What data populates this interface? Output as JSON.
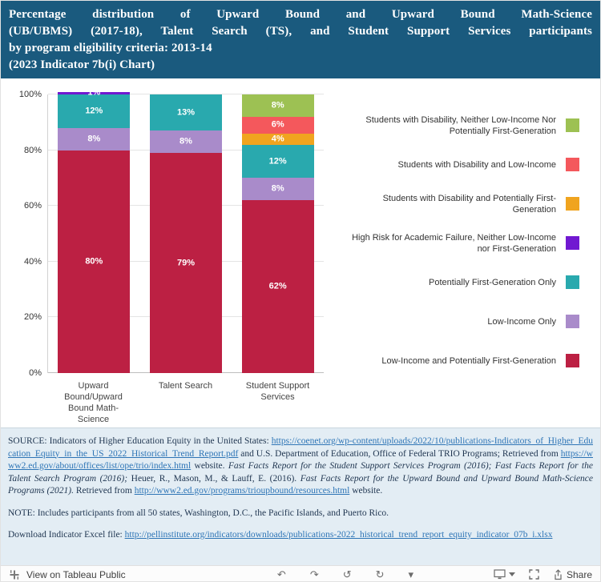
{
  "colors": {
    "header_bg": "#1a5a7e",
    "footer_bg": "#e3edf4",
    "link": "#2e75b6"
  },
  "header": {
    "title_lines": [
      "Percentage distribution of Upward Bound and Upward Bound Math-Science",
      "(UB/UBMS) (2017-18), Talent Search (TS), and Student Support Services participants",
      "by program eligibility criteria: 2013-14",
      "(2023 Indicator 7b(i) Chart)"
    ]
  },
  "chart_data": {
    "type": "bar",
    "stacked": true,
    "title": "Percentage distribution of Upward Bound and Upward Bound Math-Science (UB/UBMS) (2017-18), Talent Search (TS), and Student Support Services participants by program eligibility criteria: 2013-14 (2023 Indicator 7b(i) Chart)",
    "categories": [
      "Upward Bound/Upward Bound Math-Science",
      "Talent Search",
      "Student Support Services"
    ],
    "series": [
      {
        "name": "Low-Income and Potentially First-Generation",
        "color": "#bc2043",
        "values": [
          80,
          79,
          62
        ]
      },
      {
        "name": "Low-Income Only",
        "color": "#a98bca",
        "values": [
          8,
          8,
          8
        ]
      },
      {
        "name": "Potentially First-Generation Only",
        "color": "#29a9ae",
        "values": [
          12,
          13,
          12
        ]
      },
      {
        "name": "High Risk for Academic Failure, Neither Low-Income nor First-Generation",
        "color": "#7119d1",
        "values": [
          1,
          0,
          0
        ]
      },
      {
        "name": "Students with Disability and Potentially First-Generation",
        "color": "#f0a41f",
        "values": [
          0,
          0,
          4
        ]
      },
      {
        "name": "Students with  Disability and Low-Income",
        "color": "#f4585c",
        "values": [
          0,
          0,
          6
        ]
      },
      {
        "name": "Students with Disability, Neither Low-Income Nor Potentially First-Generation",
        "color": "#9dc153",
        "values": [
          0,
          0,
          8
        ]
      }
    ],
    "ylim": [
      0,
      100
    ],
    "yticks": [
      "0%",
      "20%",
      "40%",
      "60%",
      "80%",
      "100%"
    ],
    "xlabel": "",
    "ylabel": "",
    "grid": true,
    "legend_position": "right"
  },
  "footer": {
    "paragraphs": [
      [
        {
          "style": "normal",
          "t": "SOURCE: Indicators of Higher Education Equity in the United States: "
        },
        {
          "style": "link",
          "t": "https://coenet.org/wp-content/uploads/2022/10/publications-Indicators_of_Higher_Education_Equity_in_the_US_2022_Historical_Trend_Report.pdf"
        },
        {
          "style": "normal",
          "t": " and U.S. Department of Education, Office of Federal TRIO Programs; Retrieved from "
        },
        {
          "style": "link",
          "t": "https://www2.ed.gov/about/offices/list/ope/trio/index.html"
        },
        {
          "style": "normal",
          "t": " website. "
        },
        {
          "style": "italic",
          "t": "Fast Facts Report for the Student Support Services Program (2016); Fast Facts Report for the Talent Search Program (2016);"
        },
        {
          "style": "normal",
          "t": " Heuer, R., Mason, M., & Lauff, E. (2016). "
        },
        {
          "style": "italic",
          "t": "Fast Facts Report for the Upward Bound and Upward Bound Math-Science Programs (2021)."
        },
        {
          "style": "normal",
          "t": " Retrieved from "
        },
        {
          "style": "link",
          "t": "http://www2.ed.gov/programs/trioupbound/resources.html"
        },
        {
          "style": "normal",
          "t": " website."
        }
      ],
      [
        {
          "style": "normal",
          "t": "NOTE: Includes participants from all 50 states, Washington, D.C., the Pacific Islands, and Puerto Rico."
        }
      ],
      [
        {
          "style": "normal",
          "t": "Download Indicator Excel file: "
        },
        {
          "style": "link",
          "t": "http://pellinstitute.org/indicators/downloads/publications-2022_historical_trend_report_equity_indicator_07b_i.xlsx"
        }
      ]
    ]
  },
  "toolbar": {
    "logo_label": "View on Tableau Public",
    "icons": [
      {
        "name": "undo-icon",
        "glyph": "↶"
      },
      {
        "name": "redo-icon",
        "glyph": "↷"
      },
      {
        "name": "revert-icon",
        "glyph": "↺"
      },
      {
        "name": "refresh-icon",
        "glyph": "↻"
      },
      {
        "name": "caret-down-icon",
        "glyph": "▾"
      }
    ],
    "share_label": "Share"
  }
}
